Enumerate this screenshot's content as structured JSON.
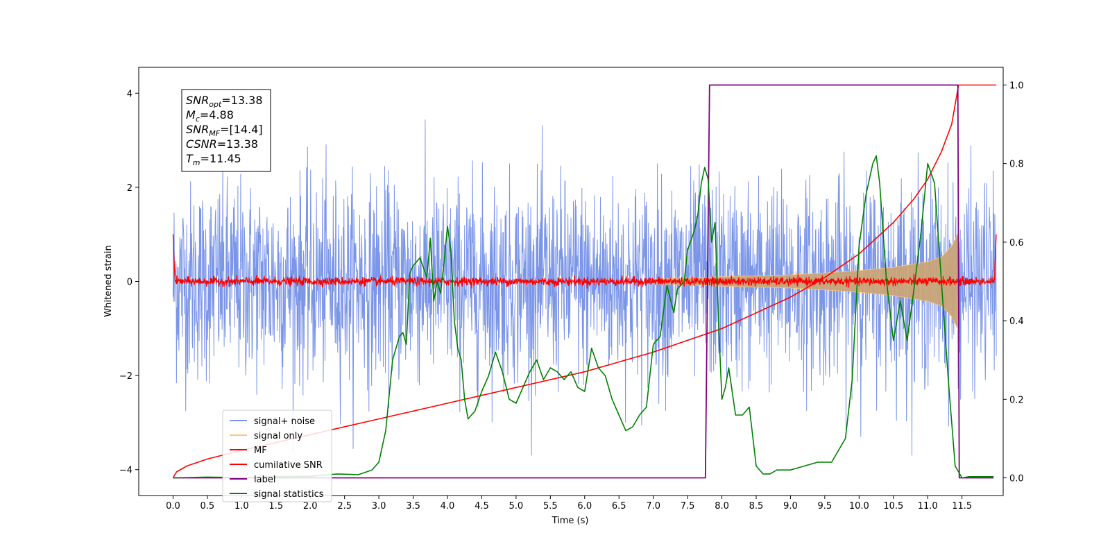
{
  "chart_data": {
    "type": "line",
    "xlabel": "Time (s)",
    "ylabel_left": "Whitened strain",
    "ylabel_right": "",
    "xlim": [
      -0.5,
      12.1
    ],
    "ylim_left": [
      -4.55,
      4.55
    ],
    "ylim_right": [
      -0.045,
      1.045
    ],
    "x_ticks": [
      0.0,
      0.5,
      1.0,
      1.5,
      2.0,
      2.5,
      3.0,
      3.5,
      4.0,
      4.5,
      5.0,
      5.5,
      6.0,
      6.5,
      7.0,
      7.5,
      8.0,
      8.5,
      9.0,
      9.5,
      10.0,
      10.5,
      11.0,
      11.5
    ],
    "x_tick_labels": [
      "0.0",
      "0.5",
      "1.0",
      "1.5",
      "2.0",
      "2.5",
      "3.0",
      "3.5",
      "4.0",
      "4.5",
      "5.0",
      "5.5",
      "6.0",
      "6.5",
      "7.0",
      "7.5",
      "8.0",
      "8.5",
      "9.0",
      "9.5",
      "10.0",
      "10.5",
      "11.0",
      "11.5"
    ],
    "y_ticks_left": [
      -4,
      -2,
      0,
      2,
      4
    ],
    "y_tick_labels_left": [
      "−4",
      "−2",
      "0",
      "2",
      "4"
    ],
    "y_ticks_right": [
      0.0,
      0.2,
      0.4,
      0.6,
      0.8,
      1.0
    ],
    "y_tick_labels_right": [
      "0.0",
      "0.2",
      "0.4",
      "0.6",
      "0.8",
      "1.0"
    ],
    "grid": false,
    "legend_position": "lower-left",
    "info_box": {
      "lines": [
        {
          "main": "SNR",
          "sub": "opt",
          "value": "=13.38"
        },
        {
          "main": "M",
          "sub": "c",
          "value": "=4.88"
        },
        {
          "main": "SNR",
          "sub": "MF",
          "value": "=[14.4]"
        },
        {
          "main": "CSNR",
          "sub": "",
          "value": "=13.38"
        },
        {
          "main": "T",
          "sub": "m",
          "value": "=11.45"
        }
      ]
    },
    "series": [
      {
        "name": "signal+ noise",
        "color": "#7b96e8",
        "axis": "left",
        "kind": "noise",
        "amplitude_envelope": 2.3,
        "x_range": [
          0.0,
          12.0
        ]
      },
      {
        "name": "signal only",
        "color": "#fdc67d",
        "axis": "left",
        "kind": "chirp_envelope",
        "x": [
          7.0,
          8.0,
          9.0,
          9.5,
          10.0,
          10.5,
          11.0,
          11.2,
          11.35,
          11.45
        ],
        "envelope": [
          0.05,
          0.1,
          0.14,
          0.18,
          0.23,
          0.3,
          0.42,
          0.52,
          0.75,
          1.05
        ]
      },
      {
        "name": "MF",
        "color": "#ff0000",
        "axis": "left",
        "kind": "noise",
        "amplitude_envelope": 0.08,
        "x_range": [
          0.0,
          12.0
        ]
      },
      {
        "name": "cumilative SNR",
        "color": "#ff0000",
        "axis": "right",
        "x": [
          0.0,
          0.05,
          0.2,
          0.5,
          1.0,
          2.0,
          3.0,
          4.0,
          5.0,
          6.0,
          7.0,
          7.5,
          8.0,
          8.5,
          9.0,
          9.5,
          10.0,
          10.5,
          10.8,
          11.0,
          11.2,
          11.35,
          11.45,
          12.0
        ],
        "values": [
          0.0,
          0.015,
          0.03,
          0.048,
          0.07,
          0.11,
          0.15,
          0.19,
          0.23,
          0.27,
          0.32,
          0.35,
          0.38,
          0.42,
          0.46,
          0.51,
          0.57,
          0.65,
          0.71,
          0.76,
          0.83,
          0.9,
          1.0,
          1.0
        ]
      },
      {
        "name": "label",
        "color": "#800080",
        "axis": "right",
        "x": [
          0.0,
          7.76,
          7.82,
          11.44,
          11.46,
          11.96
        ],
        "values": [
          0.0,
          0.0,
          1.0,
          1.0,
          0.0,
          0.0
        ]
      },
      {
        "name": "signal statistics",
        "color": "#008000",
        "axis": "right",
        "x": [
          0.0,
          0.5,
          1.0,
          1.5,
          2.0,
          2.4,
          2.7,
          2.9,
          3.0,
          3.1,
          3.2,
          3.3,
          3.35,
          3.4,
          3.45,
          3.5,
          3.55,
          3.6,
          3.7,
          3.75,
          3.8,
          3.85,
          3.9,
          3.95,
          4.0,
          4.05,
          4.1,
          4.15,
          4.2,
          4.25,
          4.3,
          4.4,
          4.5,
          4.6,
          4.7,
          4.8,
          4.9,
          5.0,
          5.1,
          5.2,
          5.3,
          5.4,
          5.5,
          5.6,
          5.7,
          5.8,
          5.9,
          6.0,
          6.1,
          6.2,
          6.3,
          6.4,
          6.5,
          6.6,
          6.7,
          6.8,
          6.9,
          7.0,
          7.1,
          7.2,
          7.3,
          7.35,
          7.4,
          7.45,
          7.5,
          7.6,
          7.65,
          7.7,
          7.75,
          7.8,
          7.85,
          7.9,
          7.95,
          8.0,
          8.05,
          8.1,
          8.2,
          8.3,
          8.4,
          8.5,
          8.6,
          8.7,
          8.8,
          9.0,
          9.2,
          9.4,
          9.6,
          9.8,
          9.9,
          10.0,
          10.1,
          10.2,
          10.25,
          10.3,
          10.4,
          10.5,
          10.6,
          10.7,
          10.8,
          10.9,
          11.0,
          11.1,
          11.2,
          11.3,
          11.4,
          11.5,
          11.6,
          11.96
        ],
        "values": [
          0.0,
          0.002,
          0.001,
          0.003,
          0.004,
          0.01,
          0.008,
          0.02,
          0.04,
          0.12,
          0.3,
          0.36,
          0.37,
          0.34,
          0.52,
          0.54,
          0.55,
          0.56,
          0.51,
          0.61,
          0.45,
          0.5,
          0.47,
          0.55,
          0.64,
          0.58,
          0.4,
          0.33,
          0.3,
          0.2,
          0.15,
          0.17,
          0.22,
          0.26,
          0.32,
          0.27,
          0.2,
          0.19,
          0.23,
          0.27,
          0.3,
          0.25,
          0.28,
          0.27,
          0.25,
          0.27,
          0.23,
          0.22,
          0.33,
          0.28,
          0.26,
          0.2,
          0.16,
          0.12,
          0.13,
          0.16,
          0.18,
          0.34,
          0.36,
          0.49,
          0.42,
          0.48,
          0.49,
          0.5,
          0.58,
          0.63,
          0.67,
          0.75,
          0.79,
          0.76,
          0.6,
          0.65,
          0.4,
          0.2,
          0.23,
          0.28,
          0.16,
          0.16,
          0.18,
          0.03,
          0.01,
          0.01,
          0.02,
          0.02,
          0.03,
          0.04,
          0.04,
          0.1,
          0.25,
          0.59,
          0.72,
          0.8,
          0.82,
          0.75,
          0.5,
          0.35,
          0.45,
          0.35,
          0.48,
          0.62,
          0.8,
          0.75,
          0.5,
          0.25,
          0.03,
          0.0,
          0.003,
          0.003
        ]
      }
    ]
  }
}
